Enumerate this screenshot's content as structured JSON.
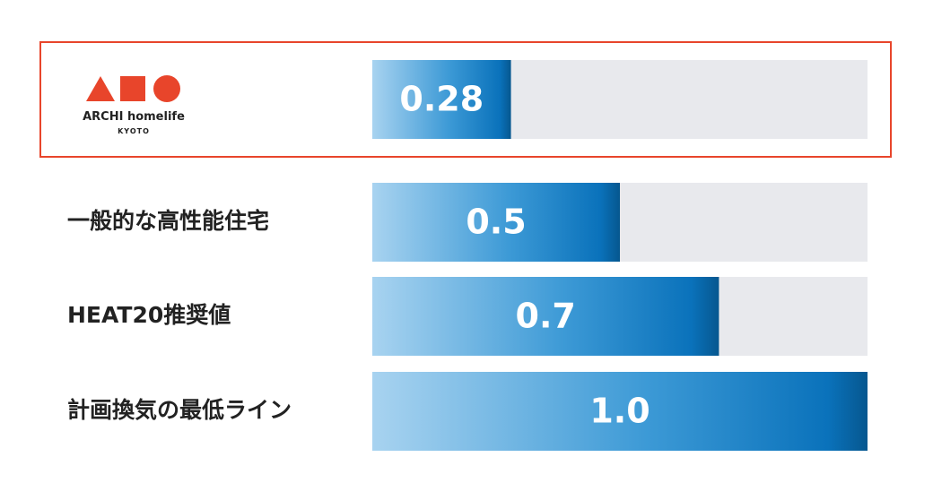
{
  "logo": {
    "name": "ARCHI homelife",
    "location": "KYOTO"
  },
  "chart_data": {
    "type": "bar",
    "orientation": "horizontal",
    "categories": [
      null,
      "一般的な高性能住宅",
      "HEAT20推奨値",
      "計画換気の最低ライン"
    ],
    "values": [
      0.28,
      0.5,
      0.7,
      1.0
    ],
    "value_labels": [
      "0.28",
      "0.5",
      "0.7",
      "1.0"
    ],
    "xlim": [
      0,
      1
    ]
  }
}
